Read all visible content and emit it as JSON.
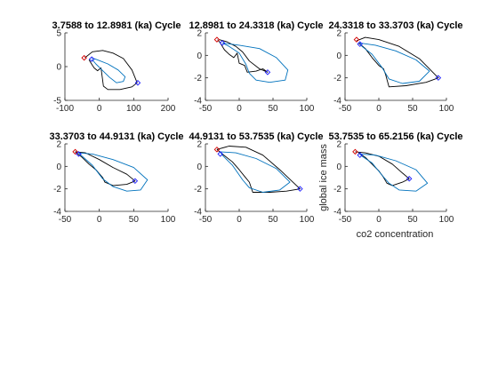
{
  "figure": {
    "xlabel": "co2 concentration",
    "ylabel": "global ice mass",
    "colors": {
      "model_curve": "#0072bd",
      "data_curve": "#000000",
      "start_marker": "#d40000",
      "end_marker": "#1a1aff",
      "axis": "#262626"
    }
  },
  "chart_data": [
    {
      "type": "line",
      "title": "3.7588 to 12.8981 (ka) Cycle",
      "xlim": [
        -100,
        200
      ],
      "ylim": [
        -5,
        5
      ],
      "xticks": [
        -100,
        0,
        100,
        200
      ],
      "yticks": [
        -5,
        0,
        5
      ],
      "series": [
        {
          "color": "#000000",
          "points": [
            [
              -42,
              1.3
            ],
            [
              -20,
              2.2
            ],
            [
              10,
              2.4
            ],
            [
              40,
              2.0
            ],
            [
              70,
              1.2
            ],
            [
              95,
              -0.5
            ],
            [
              110,
              -2.4
            ],
            [
              95,
              -3.0
            ],
            [
              60,
              -3.4
            ],
            [
              25,
              -3.4
            ],
            [
              12,
              -2.9
            ],
            [
              8,
              -1.4
            ],
            [
              5,
              -0.2
            ],
            [
              -5,
              -0.6
            ],
            [
              -15,
              -0.2
            ],
            [
              -20,
              0.2
            ],
            [
              -30,
              1.0
            ]
          ]
        },
        {
          "color": "#0072bd",
          "points": [
            [
              -22,
              1.3
            ],
            [
              -5,
              1.0
            ],
            [
              25,
              0.4
            ],
            [
              55,
              -0.5
            ],
            [
              75,
              -1.5
            ],
            [
              70,
              -2.2
            ],
            [
              50,
              -2.4
            ],
            [
              30,
              -1.6
            ],
            [
              10,
              -0.6
            ],
            [
              -10,
              0.4
            ],
            [
              -22,
              1.1
            ]
          ]
        }
      ],
      "markers": [
        {
          "role": "start",
          "color": "#d40000",
          "x": -44,
          "y": 1.3
        },
        {
          "role": "start-blue",
          "color": "#1a1aff",
          "x": -22,
          "y": 1.1
        },
        {
          "role": "end",
          "color": "#1a1aff",
          "x": 112,
          "y": -2.4
        }
      ]
    },
    {
      "type": "line",
      "title": "12.8981 to 24.3318 (ka) Cycle",
      "xlim": [
        -50,
        100
      ],
      "ylim": [
        -4,
        2
      ],
      "xticks": [
        -50,
        0,
        50,
        100
      ],
      "yticks": [
        -4,
        -2,
        0,
        2
      ],
      "series": [
        {
          "color": "#000000",
          "points": [
            [
              -32,
              1.4
            ],
            [
              -28,
              1.1
            ],
            [
              -22,
              0.5
            ],
            [
              -15,
              0.1
            ],
            [
              -8,
              -0.2
            ],
            [
              -3,
              0.2
            ],
            [
              0,
              -0.7
            ],
            [
              8,
              -0.9
            ],
            [
              12,
              -1.5
            ],
            [
              25,
              -1.4
            ],
            [
              35,
              -1.2
            ],
            [
              42,
              -1.5
            ],
            [
              30,
              -1.2
            ],
            [
              15,
              -0.5
            ],
            [
              5,
              0.3
            ],
            [
              -5,
              0.8
            ],
            [
              -18,
              1.2
            ],
            [
              -30,
              1.4
            ]
          ]
        },
        {
          "color": "#0072bd",
          "points": [
            [
              -25,
              1.1
            ],
            [
              0,
              0.9
            ],
            [
              30,
              0.6
            ],
            [
              55,
              -0.2
            ],
            [
              72,
              -1.3
            ],
            [
              68,
              -2.2
            ],
            [
              45,
              -2.4
            ],
            [
              25,
              -2.2
            ],
            [
              15,
              -1.6
            ],
            [
              10,
              -0.8
            ],
            [
              0,
              0.2
            ],
            [
              -15,
              0.8
            ],
            [
              -25,
              1.1
            ]
          ]
        }
      ],
      "markers": [
        {
          "role": "start",
          "color": "#d40000",
          "x": -33,
          "y": 1.4
        },
        {
          "role": "start-blue",
          "color": "#1a1aff",
          "x": -25,
          "y": 1.1
        },
        {
          "role": "end",
          "color": "#1a1aff",
          "x": 42,
          "y": -1.5
        }
      ]
    },
    {
      "type": "line",
      "title": "24.3318 to 33.3703 (ka) Cycle",
      "xlim": [
        -50,
        100
      ],
      "ylim": [
        -4,
        2
      ],
      "xticks": [
        -50,
        0,
        50,
        100
      ],
      "yticks": [
        -4,
        -2,
        0,
        2
      ],
      "series": [
        {
          "color": "#000000",
          "points": [
            [
              -33,
              1.3
            ],
            [
              -20,
              1.6
            ],
            [
              0,
              1.4
            ],
            [
              30,
              0.8
            ],
            [
              60,
              -0.3
            ],
            [
              88,
              -2.0
            ],
            [
              70,
              -2.4
            ],
            [
              40,
              -2.7
            ],
            [
              15,
              -2.8
            ],
            [
              10,
              -1.7
            ],
            [
              7,
              -1.2
            ],
            [
              0,
              -0.9
            ],
            [
              -10,
              -0.2
            ],
            [
              -20,
              0.6
            ],
            [
              -30,
              1.1
            ]
          ]
        },
        {
          "color": "#0072bd",
          "points": [
            [
              -28,
              1.1
            ],
            [
              -5,
              0.9
            ],
            [
              25,
              0.4
            ],
            [
              55,
              -0.4
            ],
            [
              75,
              -1.4
            ],
            [
              60,
              -2.3
            ],
            [
              35,
              -2.5
            ],
            [
              15,
              -2.1
            ],
            [
              5,
              -1.1
            ],
            [
              -10,
              0.1
            ],
            [
              -25,
              0.8
            ],
            [
              -28,
              1.1
            ]
          ]
        }
      ],
      "markers": [
        {
          "role": "start",
          "color": "#d40000",
          "x": -33,
          "y": 1.4
        },
        {
          "role": "start-blue",
          "color": "#1a1aff",
          "x": -28,
          "y": 1.0
        },
        {
          "role": "end",
          "color": "#1a1aff",
          "x": 88,
          "y": -2.0
        }
      ]
    },
    {
      "type": "line",
      "title": "33.3703 to 44.9131 (ka) Cycle",
      "xlim": [
        -50,
        100
      ],
      "ylim": [
        -4,
        2
      ],
      "xticks": [
        -50,
        0,
        50,
        100
      ],
      "yticks": [
        -4,
        -2,
        0,
        2
      ],
      "series": [
        {
          "color": "#000000",
          "points": [
            [
              -35,
              1.3
            ],
            [
              -20,
              1.2
            ],
            [
              0,
              0.6
            ],
            [
              20,
              -0.1
            ],
            [
              40,
              -0.7
            ],
            [
              52,
              -1.3
            ],
            [
              40,
              -1.6
            ],
            [
              20,
              -1.7
            ],
            [
              8,
              -1.4
            ],
            [
              5,
              -1.0
            ],
            [
              -5,
              -0.3
            ],
            [
              -15,
              0.2
            ],
            [
              -25,
              0.8
            ],
            [
              -35,
              1.3
            ]
          ]
        },
        {
          "color": "#0072bd",
          "points": [
            [
              -30,
              1.2
            ],
            [
              -10,
              1.1
            ],
            [
              20,
              0.6
            ],
            [
              50,
              -0.1
            ],
            [
              70,
              -1.2
            ],
            [
              60,
              -2.1
            ],
            [
              40,
              -2.2
            ],
            [
              20,
              -1.8
            ],
            [
              5,
              -1.1
            ],
            [
              -10,
              0.1
            ],
            [
              -25,
              0.9
            ],
            [
              -30,
              1.2
            ]
          ]
        }
      ],
      "markers": [
        {
          "role": "start",
          "color": "#d40000",
          "x": -35,
          "y": 1.3
        },
        {
          "role": "start-blue",
          "color": "#1a1aff",
          "x": -30,
          "y": 1.1
        },
        {
          "role": "end",
          "color": "#1a1aff",
          "x": 52,
          "y": -1.3
        }
      ]
    },
    {
      "type": "line",
      "title": "44.9131 to 53.7535 (ka) Cycle",
      "xlim": [
        -50,
        100
      ],
      "ylim": [
        -4,
        2
      ],
      "xticks": [
        -50,
        0,
        50,
        100
      ],
      "yticks": [
        -4,
        -2,
        0,
        2
      ],
      "series": [
        {
          "color": "#000000",
          "points": [
            [
              -33,
              1.5
            ],
            [
              -15,
              1.8
            ],
            [
              10,
              1.7
            ],
            [
              35,
              1.0
            ],
            [
              60,
              -0.3
            ],
            [
              90,
              -2.0
            ],
            [
              70,
              -2.2
            ],
            [
              45,
              -2.3
            ],
            [
              20,
              -2.3
            ],
            [
              15,
              -1.4
            ],
            [
              8,
              -0.9
            ],
            [
              0,
              -0.3
            ],
            [
              -10,
              0.4
            ],
            [
              -25,
              1.1
            ],
            [
              -33,
              1.5
            ]
          ]
        },
        {
          "color": "#0072bd",
          "points": [
            [
              -28,
              1.3
            ],
            [
              -5,
              1.2
            ],
            [
              25,
              0.7
            ],
            [
              55,
              -0.2
            ],
            [
              75,
              -1.4
            ],
            [
              60,
              -2.1
            ],
            [
              35,
              -2.3
            ],
            [
              15,
              -1.9
            ],
            [
              5,
              -1.2
            ],
            [
              -10,
              0.1
            ],
            [
              -25,
              1.0
            ],
            [
              -28,
              1.3
            ]
          ]
        }
      ],
      "markers": [
        {
          "role": "start",
          "color": "#d40000",
          "x": -33,
          "y": 1.5
        },
        {
          "role": "start-blue",
          "color": "#1a1aff",
          "x": -28,
          "y": 1.1
        },
        {
          "role": "end",
          "color": "#1a1aff",
          "x": 90,
          "y": -2.0
        }
      ]
    },
    {
      "type": "line",
      "title": "53.7535 to 65.2156 (ka) Cycle",
      "xlim": [
        -50,
        100
      ],
      "ylim": [
        -4,
        2
      ],
      "xticks": [
        -50,
        0,
        50,
        100
      ],
      "yticks": [
        -4,
        -2,
        0,
        2
      ],
      "series": [
        {
          "color": "#000000",
          "points": [
            [
              -35,
              1.3
            ],
            [
              -20,
              1.2
            ],
            [
              0,
              0.9
            ],
            [
              20,
              0.2
            ],
            [
              35,
              -0.6
            ],
            [
              45,
              -1.1
            ],
            [
              35,
              -1.4
            ],
            [
              20,
              -1.7
            ],
            [
              12,
              -1.5
            ],
            [
              6,
              -0.9
            ],
            [
              0,
              -0.4
            ],
            [
              -10,
              0.2
            ],
            [
              -20,
              0.8
            ],
            [
              -30,
              1.2
            ]
          ]
        },
        {
          "color": "#0072bd",
          "points": [
            [
              -28,
              1.1
            ],
            [
              -5,
              1.0
            ],
            [
              25,
              0.5
            ],
            [
              55,
              -0.3
            ],
            [
              72,
              -1.5
            ],
            [
              55,
              -2.2
            ],
            [
              30,
              -2.1
            ],
            [
              15,
              -1.5
            ],
            [
              5,
              -0.8
            ],
            [
              -10,
              0.3
            ],
            [
              -25,
              0.9
            ],
            [
              -28,
              1.1
            ]
          ]
        }
      ],
      "markers": [
        {
          "role": "start",
          "color": "#d40000",
          "x": -35,
          "y": 1.3
        },
        {
          "role": "start-blue",
          "color": "#1a1aff",
          "x": -28,
          "y": 1.0
        },
        {
          "role": "end",
          "color": "#1a1aff",
          "x": 45,
          "y": -1.1
        }
      ]
    }
  ]
}
